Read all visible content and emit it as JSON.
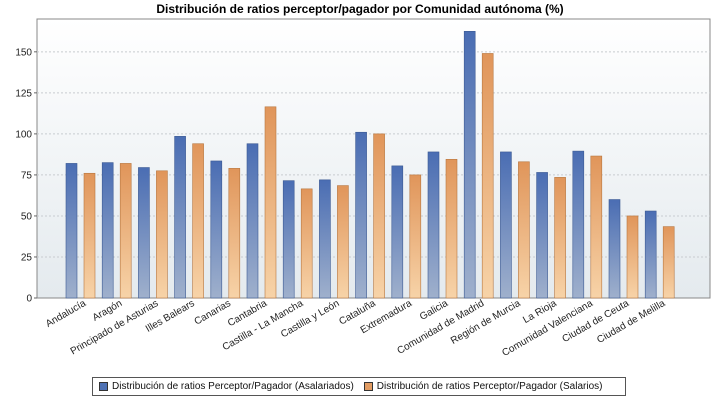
{
  "chart_data": {
    "type": "bar",
    "title": "Distribución de ratios perceptor/pagador por Comunidad autónoma (%)",
    "categories": [
      "Andalucía",
      "Aragón",
      "Principado de Asturias",
      "Illes Balears",
      "Canarias",
      "Cantabria",
      "Castilla - La Mancha",
      "Castilla y León",
      "Cataluña",
      "Extremadura",
      "Galicia",
      "Comunidad de Madrid",
      "Región de Murcia",
      "La Rioja",
      "Comunidad Valenciana",
      "Ciudad de Ceuta",
      "Ciudad de Melilla"
    ],
    "series": [
      {
        "name": "Distribución de ratios Perceptor/Pagador (Asalariados)",
        "color": "#4f72b4",
        "values": [
          82,
          82.5,
          79.5,
          98.5,
          83.5,
          94,
          71.5,
          72,
          101,
          80.5,
          89,
          162.5,
          89,
          76.5,
          89.5,
          60,
          53
        ]
      },
      {
        "name": "Distribución de ratios Perceptor/Pagador (Salarios)",
        "color": "#e29c63",
        "values": [
          76,
          82,
          77.5,
          94,
          79,
          116.5,
          66.5,
          68.5,
          100,
          75,
          84.5,
          149,
          83,
          73.5,
          86.5,
          50,
          43.5
        ]
      }
    ],
    "ylim": [
      0,
      170
    ],
    "yticks": [
      0,
      25,
      50,
      75,
      100,
      125,
      150
    ],
    "grid": true,
    "legend": "bottom"
  }
}
